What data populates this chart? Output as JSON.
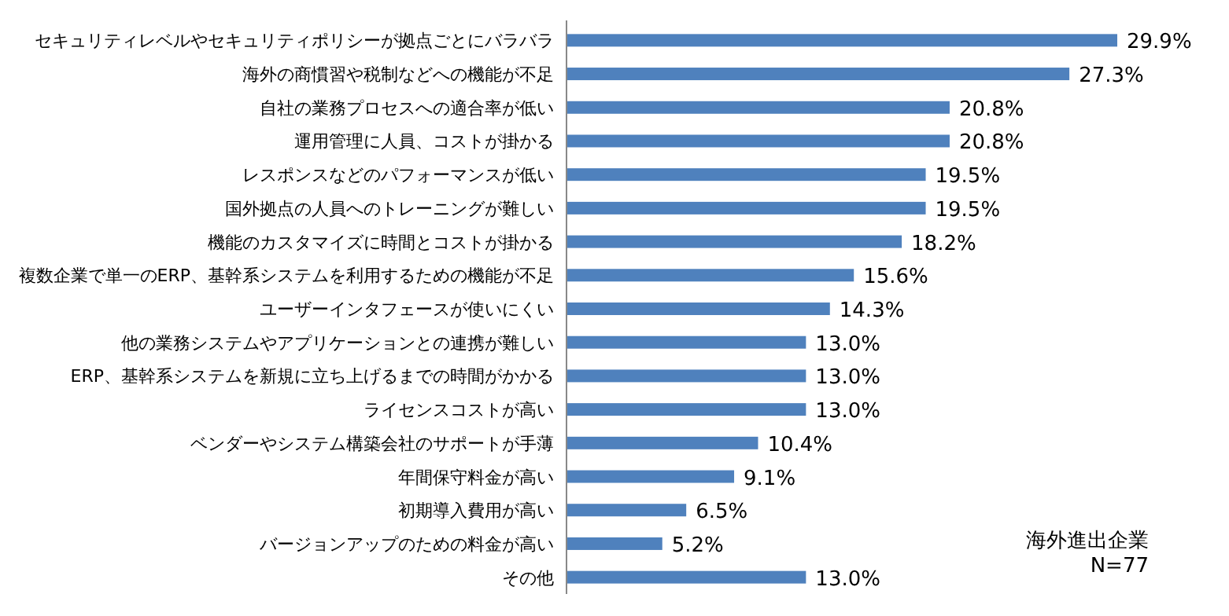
{
  "chart_data": {
    "type": "bar",
    "orientation": "horizontal",
    "color": "#4f81bd",
    "categories": [
      "セキュリティレベルやセキュリティポリシーが拠点ごとにバラバラ",
      "海外の商慣習や税制などへの機能が不足",
      "自社の業務プロセスへの適合率が低い",
      "運用管理に人員、コストが掛かる",
      "レスポンスなどのパフォーマンスが低い",
      "国外拠点の人員へのトレーニングが難しい",
      "機能のカスタマイズに時間とコストが掛かる",
      "複数企業で単一のERP、基幹系システムを利用するための機能が不足",
      "ユーザーインタフェースが使いにくい",
      "他の業務システムやアプリケーションとの連携が難しい",
      "ERP、基幹系システムを新規に立ち上げるまでの時間がかかる",
      "ライセンスコストが高い",
      "ベンダーやシステム構築会社のサポートが手薄",
      "年間保守料金が高い",
      "初期導入費用が高い",
      "バージョンアップのための料金が高い",
      "その他"
    ],
    "values": [
      29.9,
      27.3,
      20.8,
      20.8,
      19.5,
      19.5,
      18.2,
      15.6,
      14.3,
      13.0,
      13.0,
      13.0,
      10.4,
      9.1,
      6.5,
      5.2,
      13.0
    ],
    "value_labels": [
      "29.9%",
      "27.3%",
      "20.8%",
      "20.8%",
      "19.5%",
      "19.5%",
      "18.2%",
      "15.6%",
      "14.3%",
      "13.0%",
      "13.0%",
      "13.0%",
      "10.4%",
      "9.1%",
      "6.5%",
      "5.2%",
      "13.0%"
    ],
    "annotations": [
      "海外進出企業",
      "N=77"
    ]
  }
}
